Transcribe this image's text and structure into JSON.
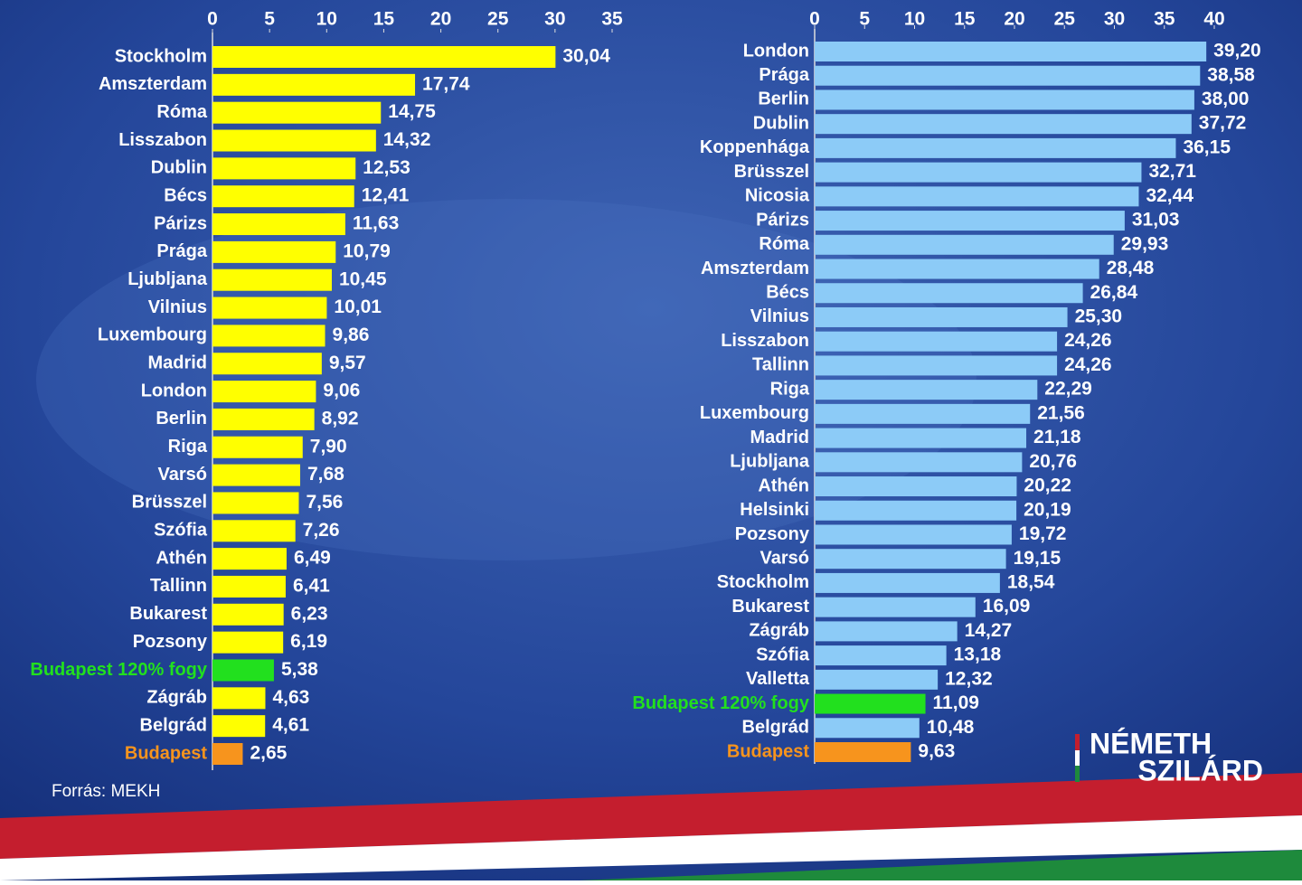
{
  "chart_data": [
    {
      "type": "bar",
      "orientation": "horizontal",
      "color": "#ffff00",
      "categories": [
        "Stockholm",
        "Amszterdam",
        "Róma",
        "Lisszabon",
        "Dublin",
        "Bécs",
        "Párizs",
        "Prága",
        "Ljubljana",
        "Vilnius",
        "Luxembourg",
        "Madrid",
        "London",
        "Berlin",
        "Riga",
        "Varsó",
        "Brüsszel",
        "Szófia",
        "Athén",
        "Tallinn",
        "Bukarest",
        "Pozsony",
        "Budapest 120% fogy",
        "Zágráb",
        "Belgrád",
        "Budapest"
      ],
      "values": [
        30.04,
        17.74,
        14.75,
        14.32,
        12.53,
        12.41,
        11.63,
        10.79,
        10.45,
        10.01,
        9.86,
        9.57,
        9.06,
        8.92,
        7.9,
        7.68,
        7.56,
        7.26,
        6.49,
        6.41,
        6.23,
        6.19,
        5.38,
        4.63,
        4.61,
        2.65
      ],
      "value_labels": [
        "30,04",
        "17,74",
        "14,75",
        "14,32",
        "12,53",
        "12,41",
        "11,63",
        "10,79",
        "10,45",
        "10,01",
        "9,86",
        "9,57",
        "9,06",
        "8,92",
        "7,90",
        "7,68",
        "7,56",
        "7,26",
        "6,49",
        "6,41",
        "6,23",
        "6,19",
        "5,38",
        "4,63",
        "4,61",
        "2,65"
      ],
      "colors": [
        "#ffff00",
        "#ffff00",
        "#ffff00",
        "#ffff00",
        "#ffff00",
        "#ffff00",
        "#ffff00",
        "#ffff00",
        "#ffff00",
        "#ffff00",
        "#ffff00",
        "#ffff00",
        "#ffff00",
        "#ffff00",
        "#ffff00",
        "#ffff00",
        "#ffff00",
        "#ffff00",
        "#ffff00",
        "#ffff00",
        "#ffff00",
        "#ffff00",
        "#22e01e",
        "#ffff00",
        "#ffff00",
        "#f7941d"
      ],
      "xlim": [
        0,
        35
      ],
      "xticks": [
        0,
        5,
        10,
        15,
        20,
        25,
        30,
        35
      ]
    },
    {
      "type": "bar",
      "orientation": "horizontal",
      "color": "#8ccbf7",
      "categories": [
        "London",
        "Prága",
        "Berlin",
        "Dublin",
        "Koppenhága",
        "Brüsszel",
        "Nicosia",
        "Párizs",
        "Róma",
        "Amszterdam",
        "Bécs",
        "Vilnius",
        "Lisszabon",
        "Tallinn",
        "Riga",
        "Luxembourg",
        "Madrid",
        "Ljubljana",
        "Athén",
        "Helsinki",
        "Pozsony",
        "Varsó",
        "Stockholm",
        "Bukarest",
        "Zágráb",
        "Szófia",
        "Valletta",
        "Budapest 120% fogy",
        "Belgrád",
        "Budapest"
      ],
      "values": [
        39.2,
        38.58,
        38.0,
        37.72,
        36.15,
        32.71,
        32.44,
        31.03,
        29.93,
        28.48,
        26.84,
        25.3,
        24.26,
        24.26,
        22.29,
        21.56,
        21.18,
        20.76,
        20.22,
        20.19,
        19.72,
        19.15,
        18.54,
        16.09,
        14.27,
        13.18,
        12.32,
        11.09,
        10.48,
        9.63
      ],
      "value_labels": [
        "39,20",
        "38,58",
        "38,00",
        "37,72",
        "36,15",
        "32,71",
        "32,44",
        "31,03",
        "29,93",
        "28,48",
        "26,84",
        "25,30",
        "24,26",
        "24,26",
        "22,29",
        "21,56",
        "21,18",
        "20,76",
        "20,22",
        "20,19",
        "19,72",
        "19,15",
        "18,54",
        "16,09",
        "14,27",
        "13,18",
        "12,32",
        "11,09",
        "10,48",
        "9,63"
      ],
      "colors": [
        "#8ccbf7",
        "#8ccbf7",
        "#8ccbf7",
        "#8ccbf7",
        "#8ccbf7",
        "#8ccbf7",
        "#8ccbf7",
        "#8ccbf7",
        "#8ccbf7",
        "#8ccbf7",
        "#8ccbf7",
        "#8ccbf7",
        "#8ccbf7",
        "#8ccbf7",
        "#8ccbf7",
        "#8ccbf7",
        "#8ccbf7",
        "#8ccbf7",
        "#8ccbf7",
        "#8ccbf7",
        "#8ccbf7",
        "#8ccbf7",
        "#8ccbf7",
        "#8ccbf7",
        "#8ccbf7",
        "#8ccbf7",
        "#8ccbf7",
        "#22e01e",
        "#8ccbf7",
        "#f7941d"
      ],
      "xlim": [
        0,
        40
      ],
      "xticks": [
        0,
        5,
        10,
        15,
        20,
        25,
        30,
        35,
        40
      ]
    }
  ],
  "source": "Forrás: MEKH",
  "brand": [
    "NÉMETH",
    "SZILÁRD"
  ]
}
